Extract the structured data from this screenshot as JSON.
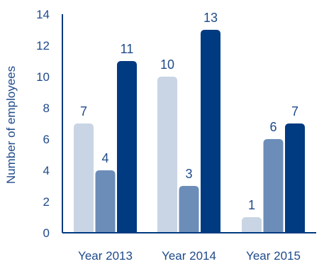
{
  "chart_data": {
    "type": "bar",
    "categories": [
      "Year 2013",
      "Year 2014",
      "Year 2015"
    ],
    "series": [
      {
        "values": [
          7,
          10,
          1
        ],
        "color": "#c9d5e4"
      },
      {
        "values": [
          4,
          3,
          6
        ],
        "color": "#6b8db8"
      },
      {
        "values": [
          11,
          13,
          7
        ],
        "color": "#003a80"
      }
    ],
    "ylabel": "Number of employees",
    "ylim": [
      0,
      14
    ],
    "yticks": [
      "0",
      "2",
      "4",
      "6",
      "8",
      "10",
      "12",
      "14"
    ],
    "axis_color": "#003a80",
    "text_color": "#1f4a8a",
    "grid": false,
    "legend": "none"
  }
}
